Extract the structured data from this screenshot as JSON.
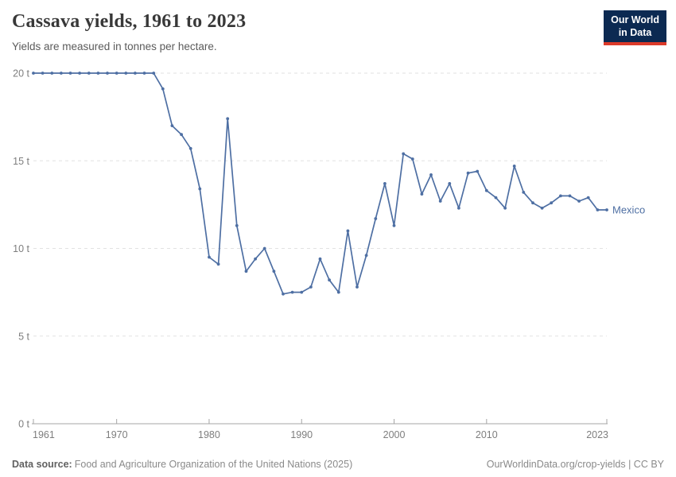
{
  "header": {
    "title": "Cassava yields, 1961 to 2023",
    "subtitle": "Yields are measured in tonnes per hectare.",
    "logo_line1": "Our World",
    "logo_line2": "in Data"
  },
  "chart_data": {
    "type": "line",
    "title": "Cassava yields, 1961 to 2023",
    "ylabel": "tonnes per hectare",
    "xlim": [
      1961,
      2023
    ],
    "ylim": [
      0,
      20
    ],
    "x_ticks": [
      1961,
      1970,
      1980,
      1990,
      2000,
      2010,
      2023
    ],
    "y_ticks": [
      0,
      5,
      10,
      15,
      20
    ],
    "y_tick_suffix": " t",
    "grid": true,
    "legend_position": "end-of-line-label",
    "series": [
      {
        "name": "Mexico",
        "color": "#4e6fa3",
        "points": [
          [
            1961,
            20
          ],
          [
            1962,
            20
          ],
          [
            1963,
            20
          ],
          [
            1964,
            20
          ],
          [
            1965,
            20
          ],
          [
            1966,
            20
          ],
          [
            1967,
            20
          ],
          [
            1968,
            20
          ],
          [
            1969,
            20
          ],
          [
            1970,
            20
          ],
          [
            1971,
            20
          ],
          [
            1972,
            20
          ],
          [
            1973,
            20
          ],
          [
            1974,
            20
          ],
          [
            1975,
            19.1
          ],
          [
            1976,
            17.0
          ],
          [
            1977,
            16.5
          ],
          [
            1978,
            15.7
          ],
          [
            1979,
            13.4
          ],
          [
            1980,
            9.5
          ],
          [
            1981,
            9.1
          ],
          [
            1982,
            17.4
          ],
          [
            1983,
            11.3
          ],
          [
            1984,
            8.7
          ],
          [
            1985,
            9.4
          ],
          [
            1986,
            10.0
          ],
          [
            1987,
            8.7
          ],
          [
            1988,
            7.4
          ],
          [
            1989,
            7.5
          ],
          [
            1990,
            7.5
          ],
          [
            1991,
            7.8
          ],
          [
            1992,
            9.4
          ],
          [
            1993,
            8.2
          ],
          [
            1994,
            7.5
          ],
          [
            1995,
            11.0
          ],
          [
            1996,
            7.8
          ],
          [
            1997,
            9.6
          ],
          [
            1998,
            11.7
          ],
          [
            1999,
            13.7
          ],
          [
            2000,
            11.3
          ],
          [
            2001,
            15.4
          ],
          [
            2002,
            15.1
          ],
          [
            2003,
            13.1
          ],
          [
            2004,
            14.2
          ],
          [
            2005,
            12.7
          ],
          [
            2006,
            13.7
          ],
          [
            2007,
            12.3
          ],
          [
            2008,
            14.3
          ],
          [
            2009,
            14.4
          ],
          [
            2010,
            13.3
          ],
          [
            2011,
            12.9
          ],
          [
            2012,
            12.3
          ],
          [
            2013,
            14.7
          ],
          [
            2014,
            13.2
          ],
          [
            2015,
            12.6
          ],
          [
            2016,
            12.3
          ],
          [
            2017,
            12.6
          ],
          [
            2018,
            13.0
          ],
          [
            2019,
            13.0
          ],
          [
            2020,
            12.7
          ],
          [
            2021,
            12.9
          ],
          [
            2022,
            12.2
          ],
          [
            2023,
            12.2
          ]
        ]
      }
    ]
  },
  "footer": {
    "source_label": "Data source:",
    "source_text": "Food and Agriculture Organization of the United Nations (2025)",
    "link_text": "OurWorldinData.org/crop-yields",
    "separator": " | ",
    "license_text": "CC BY"
  },
  "colors": {
    "accent_line": "#4e6fa3",
    "grid": "#e2e2e2",
    "axis": "#a5a5a5",
    "tick_label": "#7e7e7e",
    "logo_bg": "#0c2a52",
    "logo_red": "#dc3a2a"
  }
}
